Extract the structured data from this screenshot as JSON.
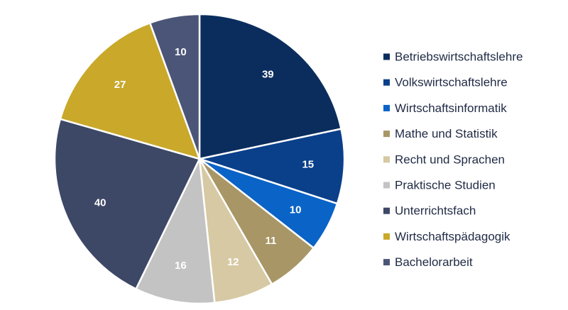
{
  "chart_data": {
    "type": "pie",
    "title": "",
    "categories": [
      "Betriebswirtschaftslehre",
      "Volkswirtschaftslehre",
      "Wirtschaftsinformatik",
      "Mathe und Statistik",
      "Recht und Sprachen",
      "Praktische Studien",
      "Unterrichtsfach",
      "Wirtschaftspädagogik",
      "Bachelorarbeit"
    ],
    "values": [
      39,
      15,
      10,
      11,
      12,
      16,
      40,
      27,
      10
    ],
    "colors": [
      "#0b2d5e",
      "#0a3f8a",
      "#0a63c7",
      "#a89666",
      "#d6c9a3",
      "#c3c3c3",
      "#3d4766",
      "#c9a82a",
      "#4b5577"
    ],
    "legend_position": "right",
    "start": "12 o'clock",
    "direction": "clockwise"
  }
}
